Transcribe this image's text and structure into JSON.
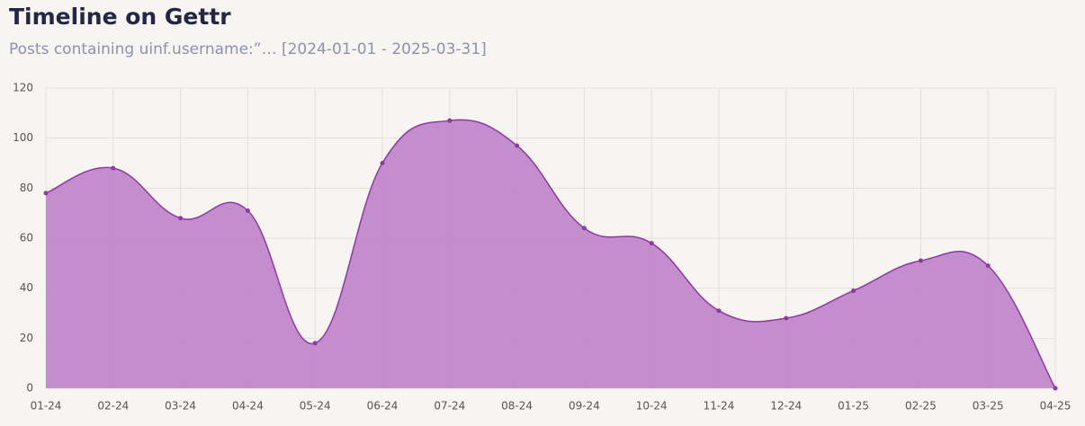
{
  "chart_data": {
    "type": "area",
    "title": "Timeline on Gettr",
    "subtitle": "Posts containing uinf.username:”… [2024-01-01 - 2025-03-31]",
    "categories": [
      "01-24",
      "02-24",
      "03-24",
      "04-24",
      "05-24",
      "06-24",
      "07-24",
      "08-24",
      "09-24",
      "10-24",
      "11-24",
      "12-24",
      "01-25",
      "02-25",
      "03-25",
      "04-25"
    ],
    "values": [
      78,
      88,
      68,
      71,
      18,
      90,
      107,
      97,
      64,
      58,
      31,
      28,
      39,
      51,
      49,
      0
    ],
    "color": "#8e3aa0",
    "fill_color": "#c087cb",
    "ylim": [
      0,
      120
    ],
    "yticks": [
      0,
      20,
      40,
      60,
      80,
      100,
      120
    ],
    "grid": true
  }
}
